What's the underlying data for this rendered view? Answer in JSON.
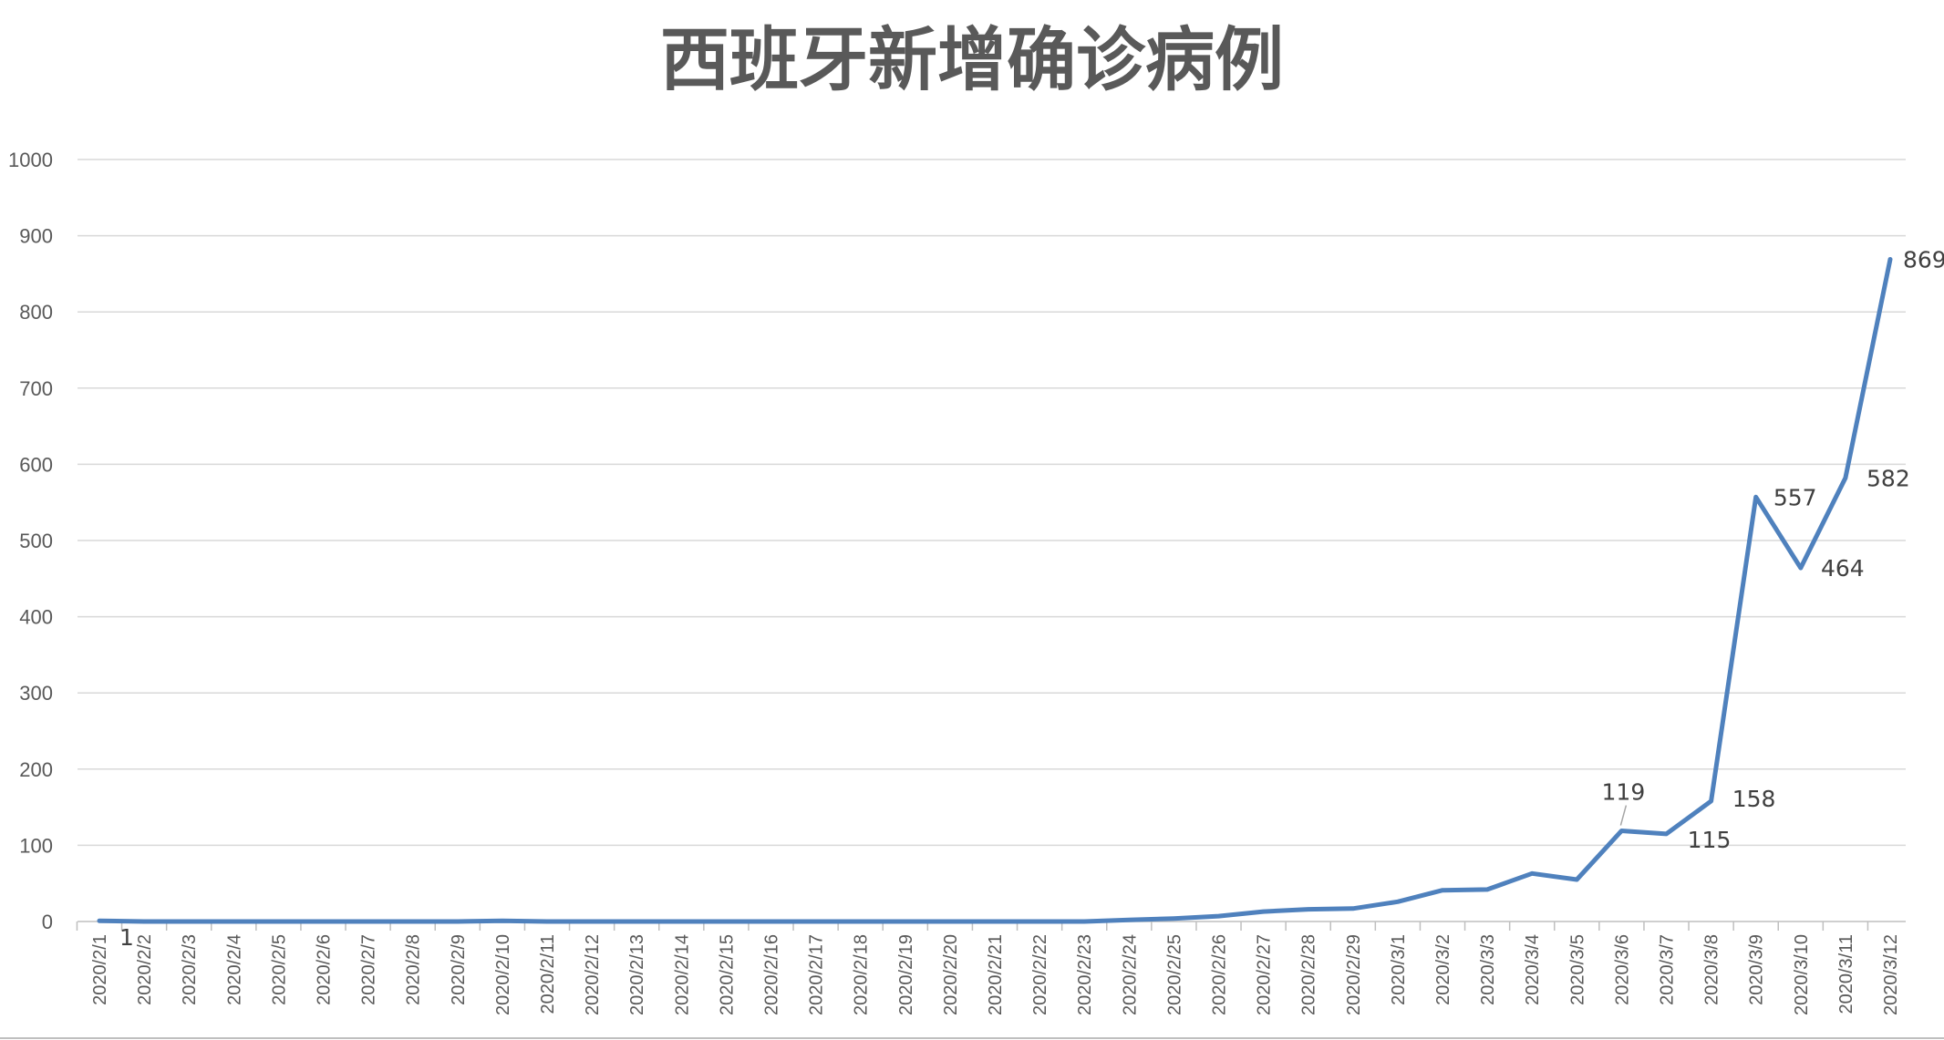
{
  "chart_data": {
    "type": "line",
    "title": "西班牙新增确诊病例",
    "xlabel": "",
    "ylabel": "",
    "ylim": [
      0,
      1000
    ],
    "yticks": [
      0,
      100,
      200,
      300,
      400,
      500,
      600,
      700,
      800,
      900,
      1000
    ],
    "grid": true,
    "legend": "none",
    "colors": {
      "series": "#4f81bd",
      "grid": "#d9d9d9",
      "text": "#595959"
    },
    "categories": [
      "2020/2/1",
      "2020/2/2",
      "2020/2/3",
      "2020/2/4",
      "2020/2/5",
      "2020/2/6",
      "2020/2/7",
      "2020/2/8",
      "2020/2/9",
      "2020/2/10",
      "2020/2/11",
      "2020/2/12",
      "2020/2/13",
      "2020/2/14",
      "2020/2/15",
      "2020/2/16",
      "2020/2/17",
      "2020/2/18",
      "2020/2/19",
      "2020/2/20",
      "2020/2/21",
      "2020/2/22",
      "2020/2/23",
      "2020/2/24",
      "2020/2/25",
      "2020/2/26",
      "2020/2/27",
      "2020/2/28",
      "2020/2/29",
      "2020/3/1",
      "2020/3/2",
      "2020/3/3",
      "2020/3/4",
      "2020/3/5",
      "2020/3/6",
      "2020/3/7",
      "2020/3/8",
      "2020/3/9",
      "2020/3/10",
      "2020/3/11",
      "2020/3/12"
    ],
    "series": [
      {
        "values": [
          1,
          0,
          0,
          0,
          0,
          0,
          0,
          0,
          0,
          1,
          0,
          0,
          0,
          0,
          0,
          0,
          0,
          0,
          0,
          0,
          0,
          0,
          0,
          2,
          4,
          7,
          13,
          16,
          17,
          26,
          41,
          42,
          63,
          55,
          119,
          115,
          158,
          557,
          464,
          582,
          869
        ]
      }
    ],
    "data_labels": [
      {
        "index": 0,
        "text": "1"
      },
      {
        "index": 34,
        "text": "119"
      },
      {
        "index": 35,
        "text": "115"
      },
      {
        "index": 36,
        "text": "158"
      },
      {
        "index": 37,
        "text": "557"
      },
      {
        "index": 38,
        "text": "464"
      },
      {
        "index": 39,
        "text": "582"
      },
      {
        "index": 40,
        "text": "869"
      }
    ]
  }
}
